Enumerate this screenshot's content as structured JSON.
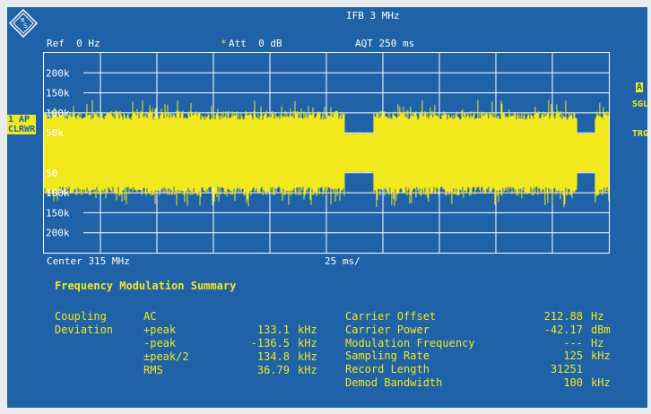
{
  "header": {
    "ifb": "IFB 3 MHz",
    "ref": "Ref  0 Hz",
    "att_marker": "*",
    "att": "Att  0 dB",
    "aqt": "AQT 250 ms"
  },
  "side_labels": {
    "left_box": "1 AP",
    "left_box2": "CLRWR",
    "right_a": "A",
    "right_sgl": "SGL",
    "right_trg": "TRG"
  },
  "footer": {
    "center": "Center 315 MHz",
    "scale": "25 ms/"
  },
  "chart_data": {
    "type": "line",
    "title": "",
    "y_ticks": [
      "200k",
      "150k",
      "100k",
      "50k",
      "50",
      "100k",
      "150k",
      "200k"
    ],
    "y_tick_values": [
      200000,
      150000,
      100000,
      50000,
      -50000,
      -100000,
      -150000,
      -200000
    ],
    "ylim": [
      -250000,
      250000
    ],
    "xlim_ms": [
      0,
      250
    ],
    "x_divisions": 10,
    "series": [
      {
        "kind": "noisy FM demod trace",
        "segments": [
          {
            "x_ms": [
              0,
              133
            ],
            "peak": 133100,
            "valley": -136500,
            "level": "noise"
          },
          {
            "x_ms": [
              133,
              146
            ],
            "peak": 50000,
            "valley": -50000,
            "level": "reduced"
          },
          {
            "x_ms": [
              146,
              236
            ],
            "peak": 133100,
            "valley": -136500,
            "level": "noise"
          },
          {
            "x_ms": [
              236,
              244
            ],
            "peak": 50000,
            "valley": -50000,
            "level": "reduced"
          },
          {
            "x_ms": [
              244,
              250
            ],
            "peak": 133100,
            "valley": -136500,
            "level": "noise"
          }
        ],
        "color": "#f2e81e"
      }
    ]
  },
  "summary": {
    "title": "Frequency Modulation Summary",
    "coupling_label": "Coupling",
    "coupling_value": "AC",
    "deviation_label": "Deviation",
    "rows_left": [
      {
        "name": "+peak",
        "value": "133.1",
        "unit": "kHz"
      },
      {
        "name": "-peak",
        "value": "-136.5",
        "unit": "kHz"
      },
      {
        "name": "±peak/2",
        "value": "134.8",
        "unit": "kHz"
      },
      {
        "name": "RMS",
        "value": "36.79",
        "unit": "kHz"
      }
    ],
    "rows_right": [
      {
        "name": "Carrier Offset",
        "value": "212.88",
        "unit": "Hz"
      },
      {
        "name": "Carrier Power",
        "value": "-42.17",
        "unit": "dBm"
      },
      {
        "name": "Modulation Frequency",
        "value": "---",
        "unit": "Hz"
      },
      {
        "name": "Sampling Rate",
        "value": "125",
        "unit": "kHz"
      },
      {
        "name": "Record Length",
        "value": "31251",
        "unit": ""
      },
      {
        "name": "Demod Bandwidth",
        "value": "100",
        "unit": "kHz"
      }
    ]
  }
}
